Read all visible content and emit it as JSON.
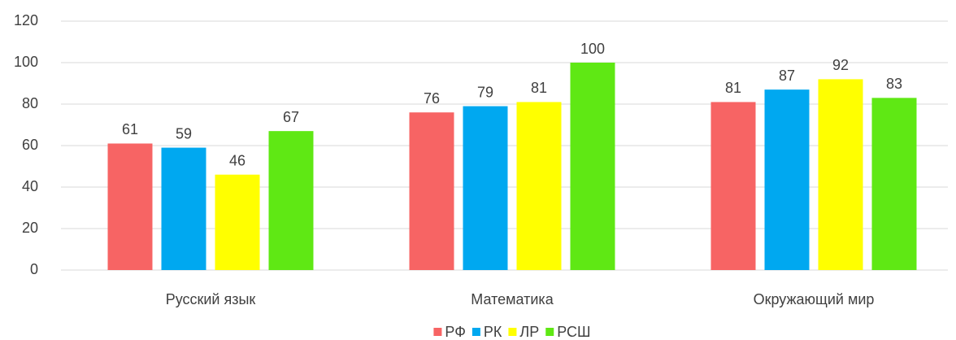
{
  "chart_data": {
    "type": "bar",
    "categories": [
      "Русский язык",
      "Математика",
      "Окружающий мир"
    ],
    "series": [
      {
        "name": "РФ",
        "color": "#f76464",
        "values": [
          61,
          76,
          81
        ]
      },
      {
        "name": "РК",
        "color": "#00a8f0",
        "values": [
          59,
          79,
          87
        ]
      },
      {
        "name": "ЛР",
        "color": "#ffff00",
        "values": [
          46,
          81,
          92
        ]
      },
      {
        "name": "РСШ",
        "color": "#5fe814",
        "values": [
          67,
          100,
          83
        ]
      }
    ],
    "ylim": [
      0,
      120
    ],
    "yticks": [
      0,
      20,
      40,
      60,
      80,
      100,
      120
    ],
    "grid": true,
    "legend": "bottom"
  }
}
